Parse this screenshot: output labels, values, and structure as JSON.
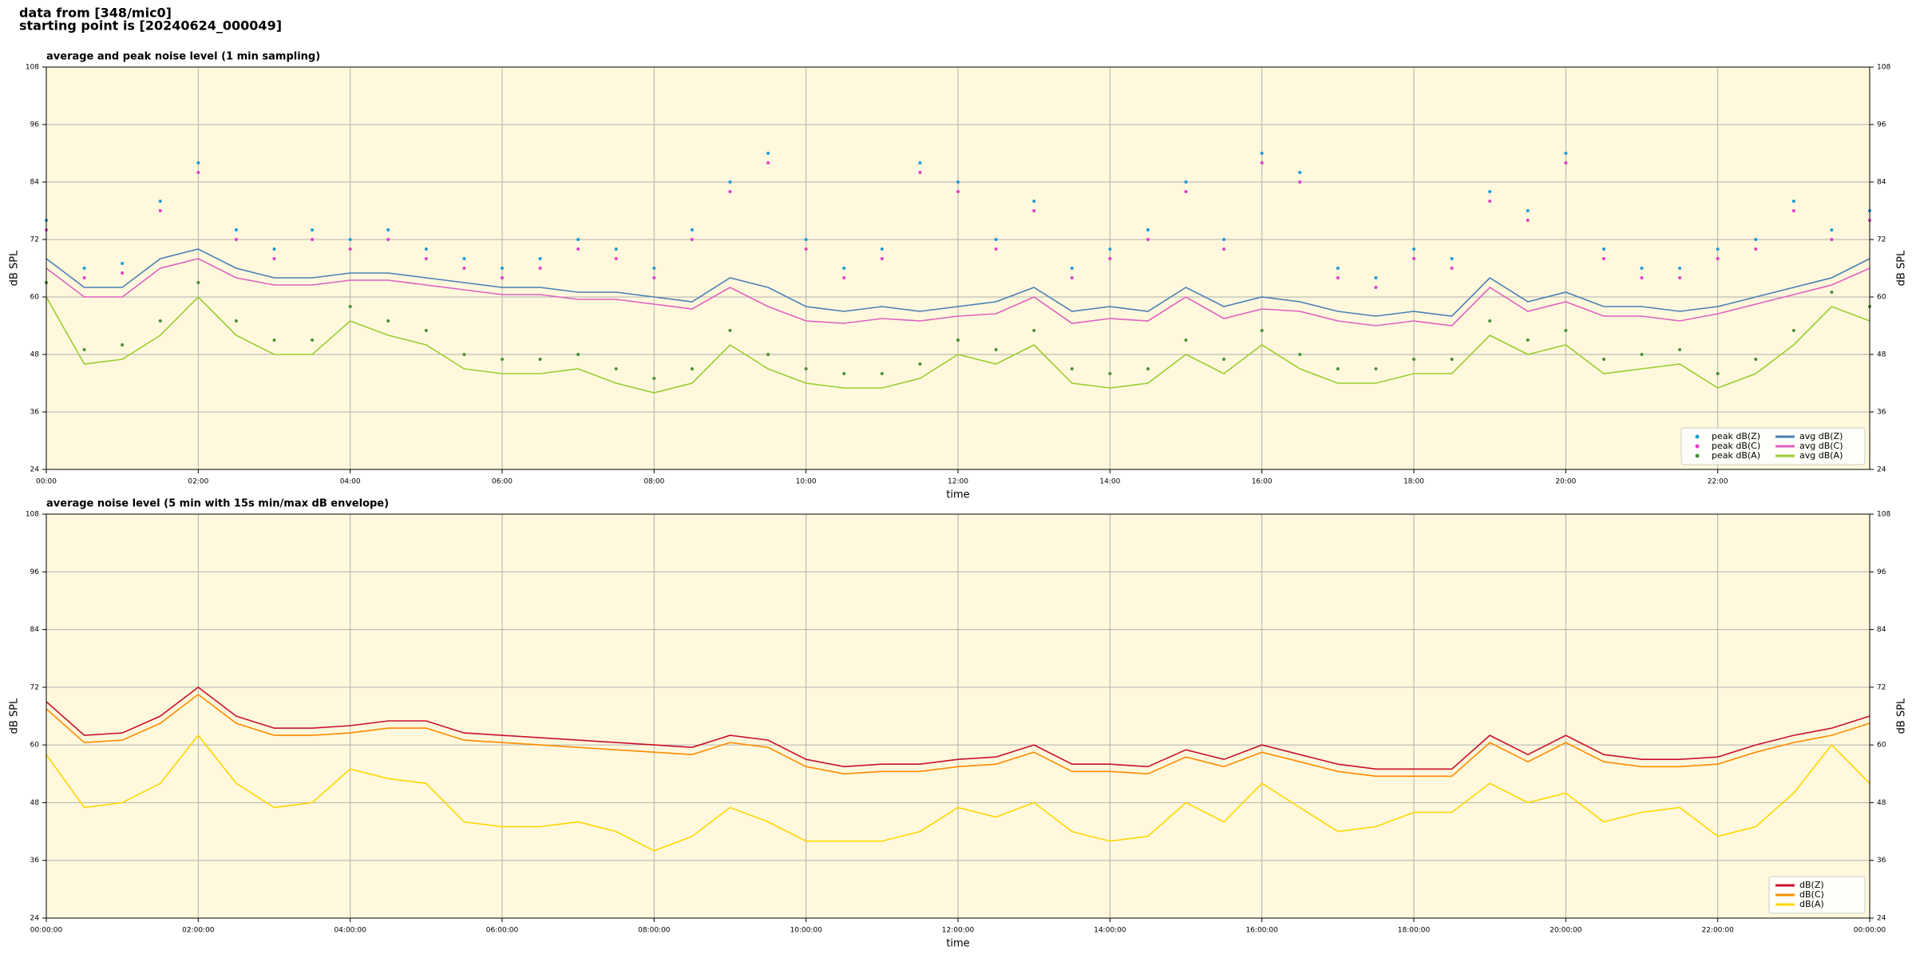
{
  "header": {
    "line1": "data from [348/mic0]",
    "line2": "starting point is [20240624_000049]"
  },
  "chart_data": [
    {
      "type": "line",
      "title": "average and peak noise level (1 min sampling)",
      "xlabel": "time",
      "ylabel": "dB SPL",
      "xlim": [
        0,
        24
      ],
      "ylim": [
        24,
        108
      ],
      "yticks": [
        24,
        36,
        48,
        60,
        72,
        84,
        96,
        108
      ],
      "xticks": [
        {
          "value": 0,
          "label": "00:00"
        },
        {
          "value": 2,
          "label": "02:00"
        },
        {
          "value": 4,
          "label": "04:00"
        },
        {
          "value": 6,
          "label": "06:00"
        },
        {
          "value": 8,
          "label": "08:00"
        },
        {
          "value": 10,
          "label": "10:00"
        },
        {
          "value": 12,
          "label": "12:00"
        },
        {
          "value": 14,
          "label": "14:00"
        },
        {
          "value": 16,
          "label": "16:00"
        },
        {
          "value": 18,
          "label": "18:00"
        },
        {
          "value": 20,
          "label": "20:00"
        },
        {
          "value": 22,
          "label": "22:00"
        }
      ],
      "grid": true,
      "legend": "lower right",
      "background": "#fff8dc",
      "x": [
        0,
        0.5,
        1,
        1.5,
        2,
        2.5,
        3,
        3.5,
        4,
        4.5,
        5,
        5.5,
        6,
        6.5,
        7,
        7.5,
        8,
        8.5,
        9,
        9.5,
        10,
        10.5,
        11,
        11.5,
        12,
        12.5,
        13,
        13.5,
        14,
        14.5,
        15,
        15.5,
        16,
        16.5,
        17,
        17.5,
        18,
        18.5,
        19,
        19.5,
        20,
        20.5,
        21,
        21.5,
        22,
        22.5,
        23,
        23.5,
        24
      ],
      "series": [
        {
          "name": "peak dB(Z)",
          "color": "#1f9bd7",
          "marker": "dots",
          "values": [
            76,
            66,
            67,
            80,
            88,
            74,
            70,
            74,
            72,
            74,
            70,
            68,
            66,
            68,
            72,
            70,
            66,
            74,
            84,
            90,
            72,
            66,
            70,
            88,
            84,
            72,
            80,
            66,
            70,
            74,
            84,
            72,
            90,
            86,
            66,
            64,
            70,
            68,
            82,
            78,
            90,
            70,
            66,
            66,
            70,
            72,
            80,
            74,
            78
          ]
        },
        {
          "name": "peak dB(C)",
          "color": "#e040c8",
          "marker": "dots",
          "values": [
            74,
            64,
            65,
            78,
            86,
            72,
            68,
            72,
            70,
            72,
            68,
            66,
            64,
            66,
            70,
            68,
            64,
            72,
            82,
            88,
            70,
            64,
            68,
            86,
            82,
            70,
            78,
            64,
            68,
            72,
            82,
            70,
            88,
            84,
            64,
            62,
            68,
            66,
            80,
            76,
            88,
            68,
            64,
            64,
            68,
            70,
            78,
            72,
            76
          ]
        },
        {
          "name": "peak dB(A)",
          "color": "#4a8f3a",
          "marker": "dots",
          "values": [
            63,
            49,
            50,
            55,
            63,
            55,
            51,
            51,
            58,
            55,
            53,
            48,
            47,
            47,
            48,
            45,
            43,
            45,
            53,
            48,
            45,
            44,
            44,
            46,
            51,
            49,
            53,
            45,
            44,
            45,
            51,
            47,
            53,
            48,
            45,
            45,
            47,
            47,
            55,
            51,
            53,
            47,
            48,
            49,
            44,
            47,
            53,
            61,
            58
          ]
        },
        {
          "name": "avg dB(Z)",
          "color": "#4a7fb5",
          "values": [
            68,
            62,
            62,
            68,
            70,
            66,
            64,
            64,
            65,
            65,
            64,
            63,
            62,
            62,
            61,
            61,
            60,
            59,
            64,
            62,
            58,
            57,
            58,
            57,
            58,
            59,
            62,
            57,
            58,
            57,
            62,
            58,
            60,
            59,
            57,
            56,
            57,
            56,
            64,
            59,
            61,
            58,
            58,
            57,
            58,
            60,
            62,
            64,
            68
          ]
        },
        {
          "name": "avg dB(C)",
          "color": "#e060c0",
          "values": [
            66,
            60,
            60,
            66,
            68,
            64,
            62.5,
            62.5,
            63.5,
            63.5,
            62.5,
            61.5,
            60.5,
            60.5,
            59.5,
            59.5,
            58.5,
            57.5,
            62,
            58,
            55,
            54.5,
            55.5,
            55,
            56,
            56.5,
            60,
            54.5,
            55.5,
            55,
            60,
            55.5,
            57.5,
            57,
            55,
            54,
            55,
            54,
            62,
            57,
            59,
            56,
            56,
            55,
            56.5,
            58.5,
            60.5,
            62.5,
            66
          ]
        },
        {
          "name": "avg dB(A)",
          "color": "#9acd32",
          "values": [
            60,
            46,
            47,
            52,
            60,
            52,
            48,
            48,
            55,
            52,
            50,
            45,
            44,
            44,
            45,
            42,
            40,
            42,
            50,
            45,
            42,
            41,
            41,
            43,
            48,
            46,
            50,
            42,
            41,
            42,
            48,
            44,
            50,
            45,
            42,
            42,
            44,
            44,
            52,
            48,
            50,
            44,
            45,
            46,
            41,
            44,
            50,
            58,
            55
          ]
        }
      ]
    },
    {
      "type": "line",
      "title": "average noise level (5 min with 15s min/max dB envelope)",
      "xlabel": "time",
      "ylabel": "dB SPL",
      "xlim": [
        0,
        24
      ],
      "ylim": [
        24,
        108
      ],
      "yticks": [
        24,
        36,
        48,
        60,
        72,
        84,
        96,
        108
      ],
      "xticks": [
        {
          "value": 0,
          "label": "00:00:00"
        },
        {
          "value": 2,
          "label": "02:00:00"
        },
        {
          "value": 4,
          "label": "04:00:00"
        },
        {
          "value": 6,
          "label": "06:00:00"
        },
        {
          "value": 8,
          "label": "08:00:00"
        },
        {
          "value": 10,
          "label": "10:00:00"
        },
        {
          "value": 12,
          "label": "12:00:00"
        },
        {
          "value": 14,
          "label": "14:00:00"
        },
        {
          "value": 16,
          "label": "16:00:00"
        },
        {
          "value": 18,
          "label": "18:00:00"
        },
        {
          "value": 20,
          "label": "20:00:00"
        },
        {
          "value": 22,
          "label": "22:00:00"
        },
        {
          "value": 24,
          "label": "00:00:00"
        }
      ],
      "grid": true,
      "legend": "lower right",
      "background": "#fff8dc",
      "x": [
        0,
        0.5,
        1,
        1.5,
        2,
        2.5,
        3,
        3.5,
        4,
        4.5,
        5,
        5.5,
        6,
        6.5,
        7,
        7.5,
        8,
        8.5,
        9,
        9.5,
        10,
        10.5,
        11,
        11.5,
        12,
        12.5,
        13,
        13.5,
        14,
        14.5,
        15,
        15.5,
        16,
        16.5,
        17,
        17.5,
        18,
        18.5,
        19,
        19.5,
        20,
        20.5,
        21,
        21.5,
        22,
        22.5,
        23,
        23.5,
        24
      ],
      "series": [
        {
          "name": "dB(Z)",
          "color": "#c8102e",
          "values": [
            69,
            62,
            62.5,
            66,
            72,
            66,
            63.5,
            63.5,
            64,
            65,
            65,
            62.5,
            62,
            61.5,
            61,
            60.5,
            60,
            59.5,
            62,
            61,
            57,
            55.5,
            56,
            56,
            57,
            57.5,
            60,
            56,
            56,
            55.5,
            59,
            57,
            60,
            58,
            56,
            55,
            55,
            55,
            62,
            58,
            62,
            58,
            57,
            57,
            57.5,
            60,
            62,
            63.5,
            66
          ]
        },
        {
          "name": "dB(C)",
          "color": "#ff8c00",
          "values": [
            67.5,
            60.5,
            61,
            64.5,
            70.5,
            64.5,
            62,
            62,
            62.5,
            63.5,
            63.5,
            61,
            60.5,
            60,
            59.5,
            59,
            58.5,
            58,
            60.5,
            59.5,
            55.5,
            54,
            54.5,
            54.5,
            55.5,
            56,
            58.5,
            54.5,
            54.5,
            54,
            57.5,
            55.5,
            58.5,
            56.5,
            54.5,
            53.5,
            53.5,
            53.5,
            60.5,
            56.5,
            60.5,
            56.5,
            55.5,
            55.5,
            56,
            58.5,
            60.5,
            62,
            64.5
          ]
        },
        {
          "name": "dB(A)",
          "color": "#ffd700",
          "values": [
            58,
            47,
            48,
            52,
            62,
            52,
            47,
            48,
            55,
            53,
            52,
            44,
            43,
            43,
            44,
            42,
            38,
            41,
            47,
            44,
            40,
            40,
            40,
            42,
            47,
            45,
            48,
            42,
            40,
            41,
            48,
            44,
            52,
            47,
            42,
            43,
            46,
            46,
            52,
            48,
            50,
            44,
            46,
            47,
            41,
            43,
            50,
            60,
            52
          ]
        }
      ]
    }
  ]
}
